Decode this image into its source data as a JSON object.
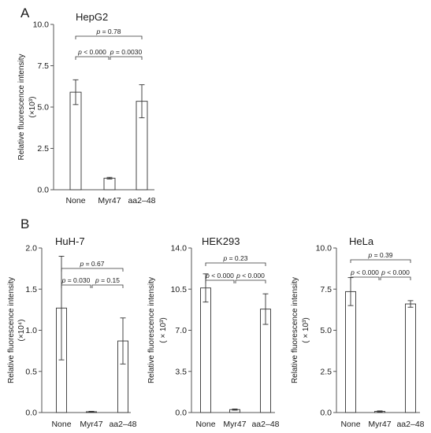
{
  "panels": {
    "a": {
      "letter": "A"
    },
    "b": {
      "letter": "B"
    }
  },
  "chart_data": [
    {
      "type": "bar",
      "title": "HepG2",
      "ylabel": "Relative fluorescence intensity",
      "yunit": "(×10³)",
      "categories": [
        "None",
        "Myr47",
        "aa2–48"
      ],
      "values": [
        5.9,
        0.7,
        5.35
      ],
      "errors": [
        0.75,
        0.05,
        1.0
      ],
      "ylim": [
        0,
        10
      ],
      "yticks": [
        "0.0",
        "2.5",
        "5.0",
        "7.5",
        "10.0"
      ],
      "comparisons": [
        {
          "from": 0,
          "to": 2,
          "label": "p = 0.78"
        },
        {
          "from": 0,
          "to": 1,
          "label": "p < 0.000"
        },
        {
          "from": 1,
          "to": 2,
          "label": "p = 0.0030"
        }
      ]
    },
    {
      "type": "bar",
      "title": "HuH-7",
      "ylabel": "Relative fluorescence intensity",
      "yunit": "(×10⁴)",
      "categories": [
        "None",
        "Myr47",
        "aa2–48"
      ],
      "values": [
        1.27,
        0.01,
        0.87
      ],
      "errors": [
        0.63,
        0.005,
        0.28
      ],
      "ylim": [
        0,
        2
      ],
      "yticks": [
        "0.0",
        "0.5",
        "1.0",
        "1.5",
        "2.0"
      ],
      "comparisons": [
        {
          "from": 0,
          "to": 2,
          "label": "p = 0.67"
        },
        {
          "from": 0,
          "to": 1,
          "label": "p = 0.030"
        },
        {
          "from": 1,
          "to": 2,
          "label": "p = 0.15"
        }
      ]
    },
    {
      "type": "bar",
      "title": "HEK293",
      "ylabel": "Relative fluorescence intensity",
      "yunit": "( × 10³)",
      "categories": [
        "None",
        "Myr47",
        "aa2–48"
      ],
      "values": [
        10.6,
        0.25,
        8.8
      ],
      "errors": [
        1.2,
        0.05,
        1.3
      ],
      "ylim": [
        0,
        14
      ],
      "yticks": [
        "0.0",
        "3.5",
        "7.0",
        "10.5",
        "14.0"
      ],
      "comparisons": [
        {
          "from": 0,
          "to": 2,
          "label": "p = 0.23"
        },
        {
          "from": 0,
          "to": 1,
          "label": "p < 0.000"
        },
        {
          "from": 1,
          "to": 2,
          "label": "p < 0.000"
        }
      ]
    },
    {
      "type": "bar",
      "title": "HeLa",
      "ylabel": "Relative fluorescence intensity",
      "yunit": "( × 10³)",
      "categories": [
        "None",
        "Myr47",
        "aa2–48"
      ],
      "values": [
        7.35,
        0.07,
        6.6
      ],
      "errors": [
        0.85,
        0.03,
        0.2
      ],
      "ylim": [
        0,
        10
      ],
      "yticks": [
        "0.0",
        "2.5",
        "5.0",
        "7.5",
        "10.0"
      ],
      "comparisons": [
        {
          "from": 0,
          "to": 2,
          "label": "p = 0.39"
        },
        {
          "from": 0,
          "to": 1,
          "label": "p < 0.000"
        },
        {
          "from": 1,
          "to": 2,
          "label": "p < 0.000"
        }
      ]
    }
  ]
}
